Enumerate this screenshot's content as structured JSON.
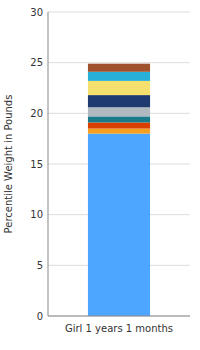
{
  "chart_data": {
    "type": "bar",
    "stacked": true,
    "categories": [
      "Girl 1 years 1 months"
    ],
    "ylabel": "Percentile Weight in Pounds",
    "series": [
      {
        "color": "#4da6ff",
        "values": [
          18.0
        ]
      },
      {
        "color": "#f5a020",
        "values": [
          0.5
        ]
      },
      {
        "color": "#d94000",
        "values": [
          0.6
        ]
      },
      {
        "color": "#1a7a8a",
        "values": [
          0.6
        ]
      },
      {
        "color": "#b0b8c0",
        "values": [
          0.9
        ]
      },
      {
        "color": "#1f3a6e",
        "values": [
          1.2
        ]
      },
      {
        "color": "#f5e06e",
        "values": [
          1.4
        ]
      },
      {
        "color": "#29b0d8",
        "values": [
          0.9
        ]
      },
      {
        "color": "#a0522d",
        "values": [
          0.8
        ]
      }
    ],
    "ylim": [
      0,
      30
    ],
    "yticks": [
      0,
      5,
      10,
      15,
      20,
      25,
      30
    ],
    "grid": true
  }
}
